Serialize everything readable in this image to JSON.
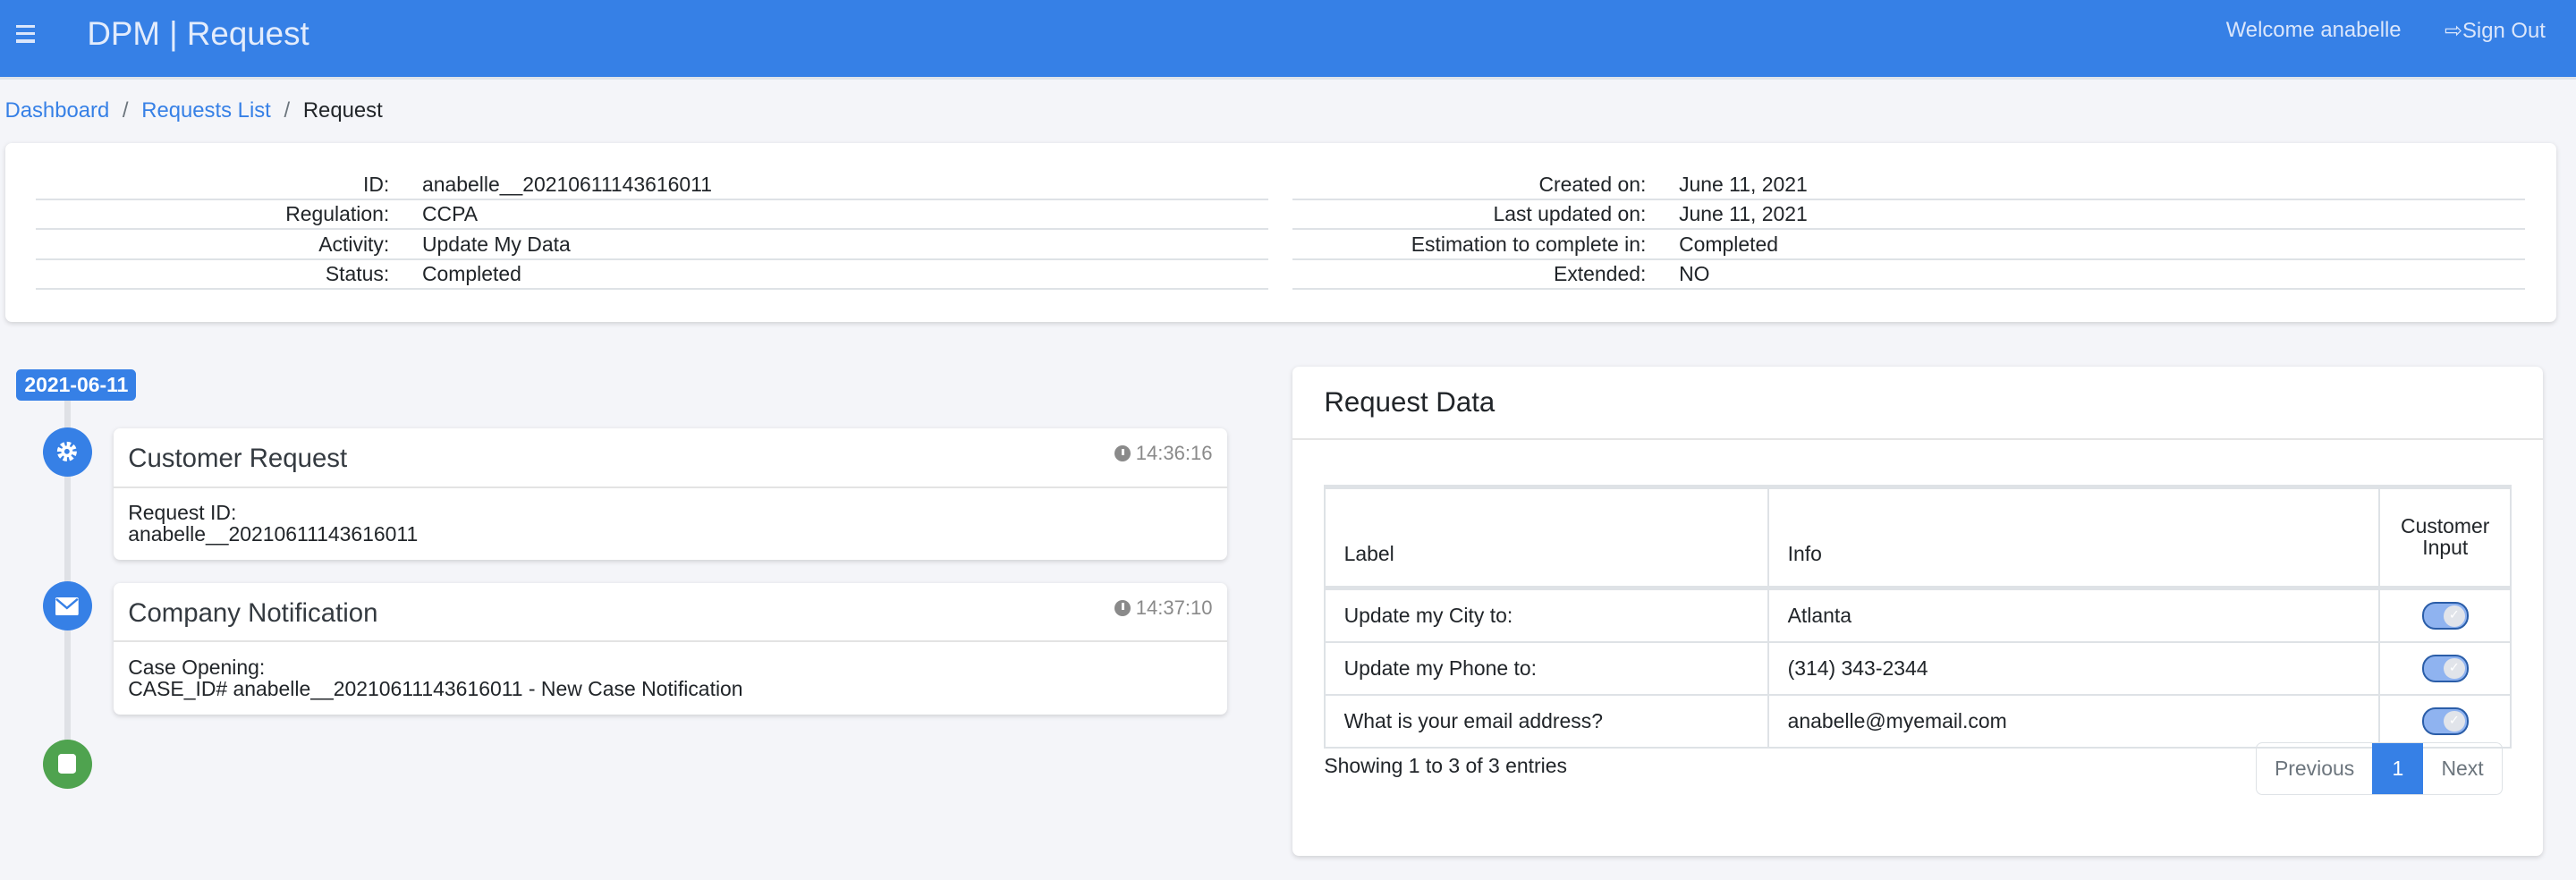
{
  "header": {
    "title": "DPM | Request",
    "welcome": "Welcome anabelle",
    "sign_out": "Sign Out",
    "menu_icon": "hamburger-icon",
    "sign_out_icon": "sign-out-icon",
    "color": "#3680e6"
  },
  "breadcrumb": {
    "items": [
      "Dashboard",
      "Requests List",
      "Request"
    ],
    "separator": "/"
  },
  "info": {
    "left": [
      {
        "k": "ID:",
        "v": "anabelle__20210611143616011"
      },
      {
        "k": "Regulation:",
        "v": "CCPA"
      },
      {
        "k": "Activity:",
        "v": "Update My Data"
      },
      {
        "k": "Status:",
        "v": "Completed"
      }
    ],
    "right": [
      {
        "k": "Created on:",
        "v": "June 11, 2021"
      },
      {
        "k": "Last updated on:",
        "v": "June 11, 2021"
      },
      {
        "k": "Estimation to complete in:",
        "v": "Completed"
      },
      {
        "k": "Extended:",
        "v": "NO"
      }
    ]
  },
  "timeline": {
    "date": "2021-06-11",
    "events": [
      {
        "icon": "gear-icon",
        "title": "Customer Request",
        "time": "14:36:16",
        "line1": "Request ID:",
        "line2": "anabelle__20210611143616011"
      },
      {
        "icon": "envelope-icon",
        "title": "Company Notification",
        "time": "14:37:10",
        "line1": "Case Opening:",
        "line2": "CASE_ID# anabelle__20210611143616011 - New Case Notification"
      }
    ],
    "end_icon": "stop-icon"
  },
  "request_data": {
    "title": "Request Data",
    "columns": [
      "Label",
      "Info",
      "Customer Input"
    ],
    "rows": [
      {
        "label": "Update my City to:",
        "info": "Atlanta",
        "customer_input": true
      },
      {
        "label": "Update my Phone to:",
        "info": "(314) 343-2344",
        "customer_input": true
      },
      {
        "label": "What is your email address?",
        "info": "anabelle@myemail.com",
        "customer_input": true
      }
    ],
    "showing": "Showing 1 to 3 of 3 entries",
    "pagination": {
      "previous": "Previous",
      "current": "1",
      "next": "Next"
    }
  }
}
